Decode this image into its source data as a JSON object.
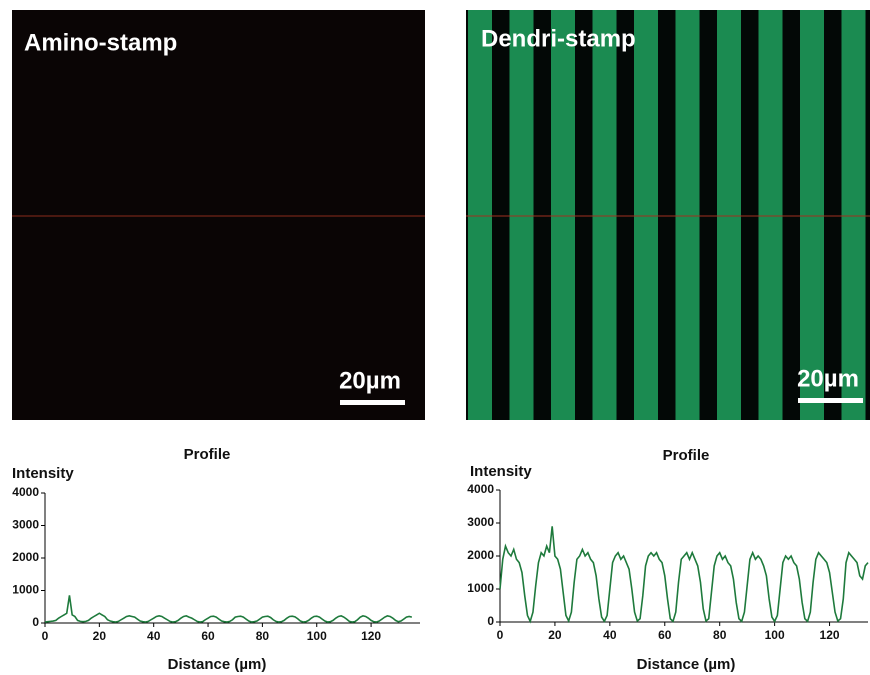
{
  "images": [
    {
      "label": "Amino-stamp",
      "scale_bar": "20µm"
    },
    {
      "label": "Dendri-stamp",
      "scale_bar": "20µm"
    }
  ],
  "chart_data": [
    {
      "type": "line",
      "title": "Profile",
      "y_label": "Intensity",
      "x_label": "Distance (µm)",
      "xlim": [
        0,
        138
      ],
      "xticks": [
        0,
        20,
        40,
        60,
        80,
        100,
        120
      ],
      "ylim": [
        0,
        4000
      ],
      "yticks": [
        0,
        1000,
        2000,
        3000,
        4000
      ],
      "x": [
        0,
        1,
        2,
        3,
        4,
        5,
        6,
        7,
        8,
        9,
        10,
        11,
        12,
        13,
        14,
        15,
        16,
        17,
        18,
        19,
        20,
        21,
        22,
        23,
        24,
        25,
        26,
        27,
        28,
        29,
        30,
        31,
        32,
        33,
        34,
        35,
        36,
        37,
        38,
        39,
        40,
        41,
        42,
        43,
        44,
        45,
        46,
        47,
        48,
        49,
        50,
        51,
        52,
        53,
        54,
        55,
        56,
        57,
        58,
        59,
        60,
        61,
        62,
        63,
        64,
        65,
        66,
        67,
        68,
        69,
        70,
        71,
        72,
        73,
        74,
        75,
        76,
        77,
        78,
        79,
        80,
        81,
        82,
        83,
        84,
        85,
        86,
        87,
        88,
        89,
        90,
        91,
        92,
        93,
        94,
        95,
        96,
        97,
        98,
        99,
        100,
        101,
        102,
        103,
        104,
        105,
        106,
        107,
        108,
        109,
        110,
        111,
        112,
        113,
        114,
        115,
        116,
        117,
        118,
        119,
        120,
        121,
        122,
        123,
        124,
        125,
        126,
        127,
        128,
        129,
        130,
        131,
        132,
        133,
        134,
        135
      ],
      "series": [
        {
          "color": "#1e7a3c",
          "values": [
            30,
            40,
            50,
            60,
            80,
            150,
            200,
            250,
            300,
            850,
            250,
            200,
            80,
            50,
            40,
            50,
            80,
            150,
            200,
            250,
            300,
            250,
            200,
            100,
            60,
            40,
            30,
            50,
            100,
            150,
            200,
            220,
            200,
            180,
            120,
            60,
            40,
            30,
            50,
            100,
            150,
            200,
            220,
            200,
            150,
            100,
            50,
            30,
            40,
            80,
            150,
            200,
            220,
            180,
            150,
            100,
            50,
            30,
            40,
            100,
            150,
            200,
            210,
            180,
            120,
            60,
            40,
            30,
            50,
            100,
            180,
            200,
            210,
            180,
            120,
            60,
            30,
            40,
            60,
            120,
            180,
            200,
            210,
            170,
            100,
            50,
            30,
            40,
            80,
            150,
            200,
            210,
            190,
            130,
            60,
            30,
            40,
            80,
            150,
            200,
            210,
            180,
            120,
            60,
            30,
            40,
            80,
            150,
            200,
            220,
            180,
            120,
            50,
            30,
            40,
            100,
            180,
            220,
            200,
            150,
            80,
            40,
            30,
            60,
            120,
            180,
            220,
            200,
            150,
            80,
            40,
            60,
            120,
            180,
            200,
            180
          ]
        }
      ]
    },
    {
      "type": "line",
      "title": "Profile",
      "y_label": "Intensity",
      "x_label": "Distance (µm)",
      "xlim": [
        0,
        134
      ],
      "xticks": [
        0,
        20,
        40,
        60,
        80,
        100,
        120
      ],
      "ylim": [
        0,
        4000
      ],
      "yticks": [
        0,
        1000,
        2000,
        3000,
        4000
      ],
      "x": [
        0,
        1,
        2,
        3,
        4,
        5,
        6,
        7,
        8,
        9,
        10,
        11,
        12,
        13,
        14,
        15,
        16,
        17,
        18,
        19,
        20,
        21,
        22,
        23,
        24,
        25,
        26,
        27,
        28,
        29,
        30,
        31,
        32,
        33,
        34,
        35,
        36,
        37,
        38,
        39,
        40,
        41,
        42,
        43,
        44,
        45,
        46,
        47,
        48,
        49,
        50,
        51,
        52,
        53,
        54,
        55,
        56,
        57,
        58,
        59,
        60,
        61,
        62,
        63,
        64,
        65,
        66,
        67,
        68,
        69,
        70,
        71,
        72,
        73,
        74,
        75,
        76,
        77,
        78,
        79,
        80,
        81,
        82,
        83,
        84,
        85,
        86,
        87,
        88,
        89,
        90,
        91,
        92,
        93,
        94,
        95,
        96,
        97,
        98,
        99,
        100,
        101,
        102,
        103,
        104,
        105,
        106,
        107,
        108,
        109,
        110,
        111,
        112,
        113,
        114,
        115,
        116,
        117,
        118,
        119,
        120,
        121,
        122,
        123,
        124,
        125,
        126,
        127,
        128,
        129,
        130,
        131,
        132,
        133,
        134
      ],
      "series": [
        {
          "color": "#1e7a3c",
          "values": [
            1000,
            1900,
            2300,
            2100,
            2000,
            2200,
            1900,
            1800,
            1500,
            800,
            200,
            20,
            300,
            1100,
            1800,
            2100,
            2000,
            2300,
            2100,
            2900,
            2000,
            1900,
            1600,
            900,
            200,
            30,
            300,
            1200,
            1900,
            2000,
            2200,
            2000,
            2100,
            1900,
            1800,
            1400,
            700,
            150,
            20,
            200,
            1000,
            1800,
            2000,
            2100,
            1900,
            2000,
            1800,
            1600,
            1000,
            300,
            30,
            100,
            800,
            1700,
            2000,
            2100,
            2000,
            2100,
            1900,
            1800,
            1400,
            700,
            100,
            20,
            300,
            1200,
            1900,
            2000,
            2100,
            1900,
            2100,
            1900,
            1700,
            1200,
            400,
            30,
            100,
            900,
            1700,
            2000,
            2100,
            1900,
            2000,
            1800,
            1700,
            1300,
            600,
            100,
            20,
            300,
            1100,
            1900,
            2100,
            1900,
            2000,
            1900,
            1700,
            1400,
            700,
            150,
            20,
            200,
            1000,
            1800,
            2000,
            1900,
            2000,
            1800,
            1700,
            1300,
            600,
            100,
            20,
            300,
            1200,
            1900,
            2100,
            2000,
            1900,
            1800,
            1500,
            900,
            300,
            30,
            100,
            700,
            1800,
            2100,
            2000,
            1900,
            1800,
            1400,
            1300,
            1700,
            1800
          ]
        }
      ]
    }
  ]
}
